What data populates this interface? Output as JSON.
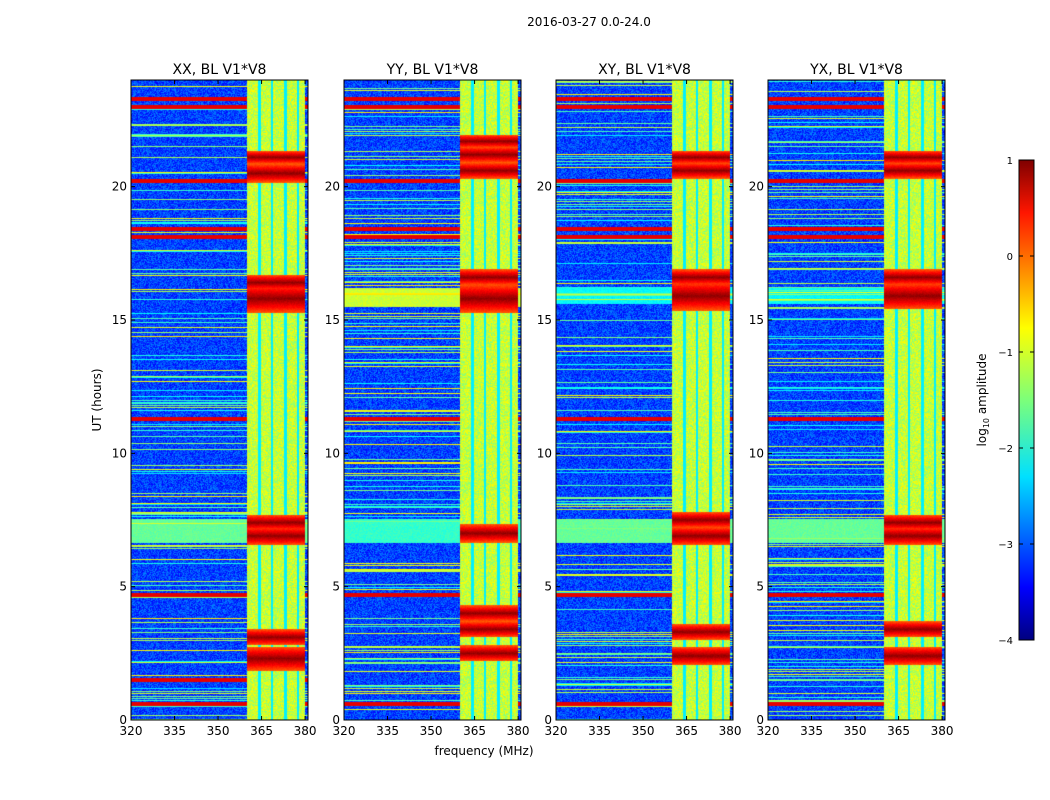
{
  "figure_title": "2016-03-27 0.0-24.0",
  "chart_data": [
    {
      "type": "heatmap",
      "title": "XX, BL V1*V8",
      "xlabel": "",
      "ylabel": "UT (hours)",
      "xlim": [
        320,
        381
      ],
      "ylim": [
        0,
        24
      ],
      "xticks": [
        320,
        335,
        350,
        365,
        380
      ],
      "yticks": [
        0,
        5,
        10,
        15,
        20
      ],
      "band_fmin": 360,
      "band_fmax": 380,
      "channel_edges": [
        364.3,
        368.6,
        373.2,
        377.5
      ],
      "rfi_bursts": [
        [
          2.3,
          0.45
        ],
        [
          3.1,
          0.3
        ],
        [
          6.9,
          0.35
        ],
        [
          7.4,
          0.3
        ],
        [
          15.8,
          0.55
        ],
        [
          16.4,
          0.3
        ],
        [
          20.5,
          0.35
        ],
        [
          21.1,
          0.25
        ]
      ],
      "bright_lines": [
        0.6,
        1.5,
        4.7,
        11.3,
        18.1,
        18.4,
        20.2,
        23.0,
        23.3
      ],
      "wideband_events": [
        [
          7.1,
          0.45,
          0.45
        ]
      ]
    },
    {
      "type": "heatmap",
      "title": "YY, BL V1*V8",
      "xlabel": "frequency (MHz)",
      "ylabel": "",
      "xlim": [
        320,
        381
      ],
      "ylim": [
        0,
        24
      ],
      "xticks": [
        320,
        335,
        350,
        365,
        380
      ],
      "yticks": [
        0,
        5,
        10,
        15,
        20
      ],
      "band_fmin": 360,
      "band_fmax": 380,
      "channel_edges": [
        364.3,
        368.6,
        373.2,
        377.5
      ],
      "rfi_bursts": [
        [
          2.5,
          0.3
        ],
        [
          3.4,
          0.3
        ],
        [
          4.0,
          0.3
        ],
        [
          7.0,
          0.35
        ],
        [
          15.8,
          0.55
        ],
        [
          16.6,
          0.3
        ],
        [
          20.6,
          0.3
        ],
        [
          21.2,
          0.3
        ],
        [
          21.7,
          0.25
        ]
      ],
      "bright_lines": [
        0.6,
        4.7,
        11.3,
        18.1,
        18.4,
        20.2,
        23.0,
        23.3
      ],
      "wideband_events": [
        [
          7.1,
          0.45,
          0.4
        ],
        [
          15.85,
          0.35,
          0.55
        ]
      ]
    },
    {
      "type": "heatmap",
      "title": "XY, BL V1*V8",
      "xlabel": "",
      "ylabel": "",
      "xlim": [
        320,
        381
      ],
      "ylim": [
        0,
        24
      ],
      "xticks": [
        320,
        335,
        350,
        365,
        380
      ],
      "yticks": [
        0,
        5,
        10,
        15,
        20
      ],
      "band_fmin": 360,
      "band_fmax": 380,
      "channel_edges": [
        364.3,
        368.6,
        373.2,
        377.5
      ],
      "rfi_bursts": [
        [
          2.4,
          0.35
        ],
        [
          3.3,
          0.3
        ],
        [
          6.9,
          0.35
        ],
        [
          7.5,
          0.3
        ],
        [
          15.9,
          0.55
        ],
        [
          16.6,
          0.3
        ],
        [
          20.6,
          0.3
        ],
        [
          21.1,
          0.25
        ]
      ],
      "bright_lines": [
        0.6,
        4.7,
        11.3,
        18.1,
        18.4,
        20.2,
        23.0,
        23.3
      ],
      "wideband_events": [
        [
          7.1,
          0.45,
          0.45
        ],
        [
          15.9,
          0.3,
          0.35
        ]
      ]
    },
    {
      "type": "heatmap",
      "title": "YX, BL V1*V8",
      "xlabel": "",
      "ylabel": "",
      "xlim": [
        320,
        381
      ],
      "ylim": [
        0,
        24
      ],
      "xticks": [
        320,
        335,
        350,
        365,
        380
      ],
      "yticks": [
        0,
        5,
        10,
        15,
        20
      ],
      "band_fmin": 360,
      "band_fmax": 380,
      "channel_edges": [
        364.3,
        368.6,
        373.2,
        377.5
      ],
      "rfi_bursts": [
        [
          2.4,
          0.35
        ],
        [
          3.4,
          0.3
        ],
        [
          6.9,
          0.35
        ],
        [
          7.4,
          0.3
        ],
        [
          15.9,
          0.5
        ],
        [
          16.6,
          0.3
        ],
        [
          20.6,
          0.3
        ],
        [
          21.1,
          0.25
        ]
      ],
      "bright_lines": [
        0.6,
        4.7,
        11.3,
        18.1,
        18.4,
        20.2,
        23.0,
        23.3
      ],
      "wideband_events": [
        [
          7.1,
          0.45,
          0.45
        ],
        [
          15.9,
          0.3,
          0.35
        ]
      ]
    }
  ],
  "colorbar": {
    "label_main": "log",
    "label_sub": "10",
    "label_rest": " amplitude",
    "range": [
      -4,
      1
    ],
    "ticks": [
      "1",
      "0",
      "−1",
      "−2",
      "−3",
      "−4"
    ],
    "colormap": "jet"
  }
}
